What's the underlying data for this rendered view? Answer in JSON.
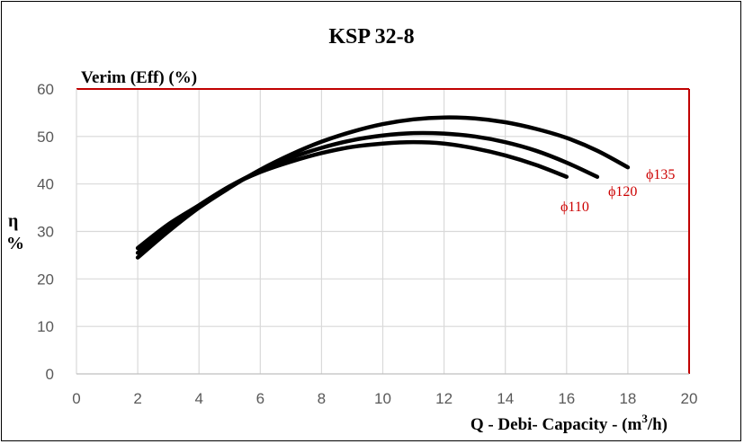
{
  "chart_data": {
    "type": "line",
    "title": "KSP 32-8",
    "ylabel_top": "Verim (Eff) (%)",
    "ylabel_side_symbol": "η",
    "ylabel_side_unit": "%",
    "xlabel_text": "Q - Debi- Capacity - (m",
    "xlabel_sup": "3",
    "xlabel_end": "/h)",
    "xlim": [
      0,
      20
    ],
    "ylim": [
      0,
      60
    ],
    "x_ticks": [
      0,
      2,
      4,
      6,
      8,
      10,
      12,
      14,
      16,
      18,
      20
    ],
    "y_ticks": [
      0,
      10,
      20,
      30,
      40,
      50,
      60
    ],
    "grid": true,
    "series": [
      {
        "name": "ϕ110",
        "color": "#000000",
        "x": [
          2,
          3,
          4,
          5,
          6,
          7,
          8,
          9,
          10,
          11,
          12,
          13,
          14,
          15,
          16
        ],
        "y": [
          26.5,
          31.5,
          35.5,
          39.5,
          42.5,
          44.7,
          46.5,
          47.8,
          48.5,
          48.8,
          48.5,
          47.5,
          46,
          44,
          41.5
        ]
      },
      {
        "name": "ϕ120",
        "color": "#000000",
        "x": [
          2,
          3,
          4,
          5,
          6,
          7,
          8,
          9,
          10,
          11,
          12,
          13,
          14,
          15,
          16,
          17
        ],
        "y": [
          25.5,
          31,
          35.5,
          39.5,
          42.8,
          45.5,
          47.6,
          49.2,
          50.2,
          50.7,
          50.6,
          50,
          48.8,
          47,
          44.5,
          41.5
        ]
      },
      {
        "name": "ϕ135",
        "color": "#000000",
        "x": [
          2,
          3,
          4,
          5,
          6,
          7,
          8,
          9,
          10,
          11,
          12,
          13,
          14,
          15,
          16,
          17,
          18
        ],
        "y": [
          24.5,
          30,
          35,
          39.2,
          43,
          46.2,
          48.9,
          51,
          52.6,
          53.6,
          54,
          53.8,
          53,
          51.6,
          49.7,
          47,
          43.5
        ]
      }
    ],
    "curve_label_color": "#cc0000",
    "axis_frame_color": "#c00000"
  }
}
